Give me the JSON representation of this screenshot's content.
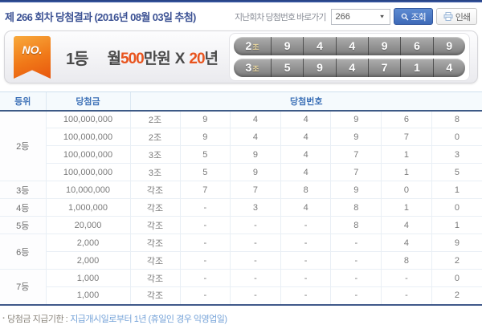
{
  "header": {
    "title": "제 266 회차 당첨결과 (2016년 08월 03일 추첨)",
    "goto_label": "지난회차 당첨번호 바로가기",
    "round_select_value": "266",
    "select_arrow": "▼",
    "search_button": "조회",
    "print_button": "인쇄"
  },
  "banner": {
    "ribbon": "NO.",
    "rank": "1등",
    "prize_prefix": "월",
    "prize_amount": "500",
    "prize_unit": "만원",
    "times": "X",
    "years_value": "20",
    "years_unit": "년",
    "first_numbers": [
      {
        "jo": "2",
        "jo_suffix": "조",
        "digits": [
          "9",
          "4",
          "4",
          "9",
          "6",
          "9"
        ]
      },
      {
        "jo": "3",
        "jo_suffix": "조",
        "digits": [
          "5",
          "9",
          "4",
          "7",
          "1",
          "4"
        ]
      }
    ]
  },
  "table": {
    "headers": {
      "rank": "등위",
      "prize": "당첨금",
      "numbers": "당첨번호"
    },
    "rows": [
      {
        "rank": "2등",
        "rank_span": 4,
        "prize": "100,000,000",
        "jo": "2조",
        "digits": [
          "9",
          "4",
          "4",
          "9",
          "6",
          "8"
        ]
      },
      {
        "prize": "100,000,000",
        "jo": "2조",
        "digits": [
          "9",
          "4",
          "4",
          "9",
          "7",
          "0"
        ]
      },
      {
        "prize": "100,000,000",
        "jo": "3조",
        "digits": [
          "5",
          "9",
          "4",
          "7",
          "1",
          "3"
        ]
      },
      {
        "prize": "100,000,000",
        "jo": "3조",
        "digits": [
          "5",
          "9",
          "4",
          "7",
          "1",
          "5"
        ]
      },
      {
        "rank": "3등",
        "rank_span": 1,
        "prize": "10,000,000",
        "jo": "각조",
        "digits": [
          "7",
          "7",
          "8",
          "9",
          "0",
          "1"
        ]
      },
      {
        "rank": "4등",
        "rank_span": 1,
        "prize": "1,000,000",
        "jo": "각조",
        "digits": [
          "-",
          "3",
          "4",
          "8",
          "1",
          "0"
        ]
      },
      {
        "rank": "5등",
        "rank_span": 1,
        "prize": "20,000",
        "jo": "각조",
        "digits": [
          "-",
          "-",
          "-",
          "8",
          "4",
          "1"
        ]
      },
      {
        "rank": "6등",
        "rank_span": 2,
        "prize": "2,000",
        "jo": "각조",
        "digits": [
          "-",
          "-",
          "-",
          "-",
          "4",
          "9"
        ]
      },
      {
        "prize": "2,000",
        "jo": "각조",
        "digits": [
          "-",
          "-",
          "-",
          "-",
          "8",
          "2"
        ]
      },
      {
        "rank": "7등",
        "rank_span": 2,
        "prize": "1,000",
        "jo": "각조",
        "digits": [
          "-",
          "-",
          "-",
          "-",
          "-",
          "0"
        ]
      },
      {
        "prize": "1,000",
        "jo": "각조",
        "digits": [
          "-",
          "-",
          "-",
          "-",
          "-",
          "2"
        ]
      }
    ]
  },
  "footer": {
    "bullet": "·",
    "label": "당첨금 지급기한 :",
    "value": "지급개시일로부터 1년 (휴일인 경우 익영업일)"
  },
  "colors": {
    "accent_orange": "#e8541e",
    "title_navy": "#3c5294",
    "table_header_blue": "#3e72b8",
    "search_button_blue": "#466fb9",
    "number_bar_gray": "#8a8a8a",
    "jo_suffix_gold": "#ecd9a0"
  }
}
